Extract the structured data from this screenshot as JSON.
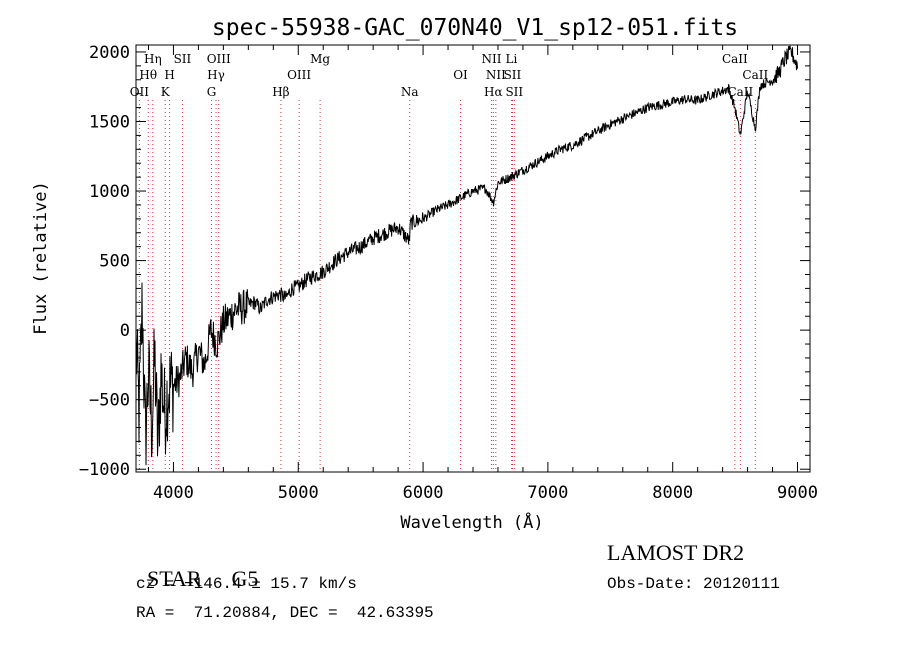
{
  "chart_data": {
    "type": "line",
    "title": "spec-55938-GAC_070N40_V1_sp12-051.fits",
    "xlabel": "Wavelength (Å)",
    "ylabel": "Flux (relative)",
    "xlim": [
      3700,
      9100
    ],
    "ylim": [
      -1020,
      2050
    ],
    "xticks": [
      4000,
      5000,
      6000,
      7000,
      8000,
      9000
    ],
    "xtick_labels": [
      "4000",
      "5000",
      "6000",
      "7000",
      "8000",
      "9000"
    ],
    "yticks": [
      -1000,
      -500,
      0,
      500,
      1000,
      1500,
      2000
    ],
    "ytick_labels": [
      "−1000",
      "−500",
      "0",
      "500",
      "1000",
      "1500",
      "2000"
    ],
    "grid": false,
    "series": [
      {
        "x": [
          3700,
          3725,
          3750,
          3775,
          3800,
          3825,
          3850,
          3875,
          3900,
          3930,
          3960,
          4000,
          4050,
          4100,
          4150,
          4200,
          4250,
          4300,
          4350,
          4400,
          4450,
          4500,
          4550,
          4600,
          4650,
          4700,
          4750,
          4800,
          4850,
          4900,
          4950,
          5000,
          5050,
          5100,
          5200,
          5300,
          5400,
          5500,
          5600,
          5700,
          5800,
          5890,
          5900,
          6000,
          6100,
          6200,
          6300,
          6400,
          6500,
          6563,
          6600,
          6700,
          6800,
          6900,
          7000,
          7100,
          7200,
          7300,
          7400,
          7500,
          7600,
          7700,
          7800,
          7900,
          8000,
          8100,
          8200,
          8300,
          8400,
          8450,
          8498,
          8542,
          8600,
          8662,
          8700,
          8800,
          8850,
          8900,
          8950,
          9000
        ],
        "y": [
          -100,
          -600,
          200,
          -800,
          -300,
          -700,
          -200,
          -850,
          -300,
          -600,
          -400,
          -400,
          -350,
          -200,
          -300,
          -150,
          -250,
          0,
          -100,
          50,
          100,
          150,
          160,
          180,
          200,
          150,
          220,
          240,
          260,
          230,
          300,
          310,
          350,
          380,
          420,
          500,
          560,
          600,
          660,
          700,
          740,
          640,
          770,
          800,
          860,
          900,
          950,
          1000,
          1020,
          920,
          1060,
          1100,
          1150,
          1200,
          1250,
          1300,
          1330,
          1380,
          1430,
          1480,
          1520,
          1560,
          1600,
          1620,
          1640,
          1660,
          1650,
          1690,
          1720,
          1740,
          1600,
          1400,
          1720,
          1450,
          1760,
          1800,
          1850,
          1950,
          2000,
          1900
        ]
      }
    ],
    "lines": [
      {
        "x": 3727,
        "label": "OII",
        "row": 3
      },
      {
        "x": 3798,
        "label": "Hθ",
        "row": 2
      },
      {
        "x": 3835,
        "label": "Hη",
        "row": 1
      },
      {
        "x": 3934,
        "label": "K",
        "row": 3
      },
      {
        "x": 3969,
        "label": "H",
        "row": 2
      },
      {
        "x": 4072,
        "label": "SII",
        "row": 1
      },
      {
        "x": 4305,
        "label": "G",
        "row": 3
      },
      {
        "x": 4341,
        "label": "Hγ",
        "row": 2
      },
      {
        "x": 4363,
        "label": "OIII",
        "row": 1
      },
      {
        "x": 4861,
        "label": "Hβ",
        "row": 3
      },
      {
        "x": 5007,
        "label": "OIII",
        "row": 2
      },
      {
        "x": 5175,
        "label": "Mg",
        "row": 1
      },
      {
        "x": 5893,
        "label": "Na",
        "row": 3
      },
      {
        "x": 6300,
        "label": "OI",
        "row": 2
      },
      {
        "x": 6548,
        "label": "NII",
        "row": 1
      },
      {
        "x": 6563,
        "label": "Hα",
        "row": 3
      },
      {
        "x": 6583,
        "label": "NII",
        "row": 2
      },
      {
        "x": 6708,
        "label": "Li",
        "row": 1
      },
      {
        "x": 6716,
        "label": "SII",
        "row": 2
      },
      {
        "x": 6731,
        "label": "SII",
        "row": 3
      },
      {
        "x": 8498,
        "label": "CaII",
        "row": 1
      },
      {
        "x": 8542,
        "label": "CaII",
        "row": 3
      },
      {
        "x": 8662,
        "label": "CaII",
        "row": 2
      }
    ]
  },
  "footer": {
    "class": "STAR",
    "subclass": "G5",
    "survey": "LAMOST DR2",
    "cz": "cz = −146.4 ± 15.7 km/s",
    "obs_date": "Obs-Date: 20120111",
    "coords": "RA =  71.20884, DEC =  42.63395"
  }
}
